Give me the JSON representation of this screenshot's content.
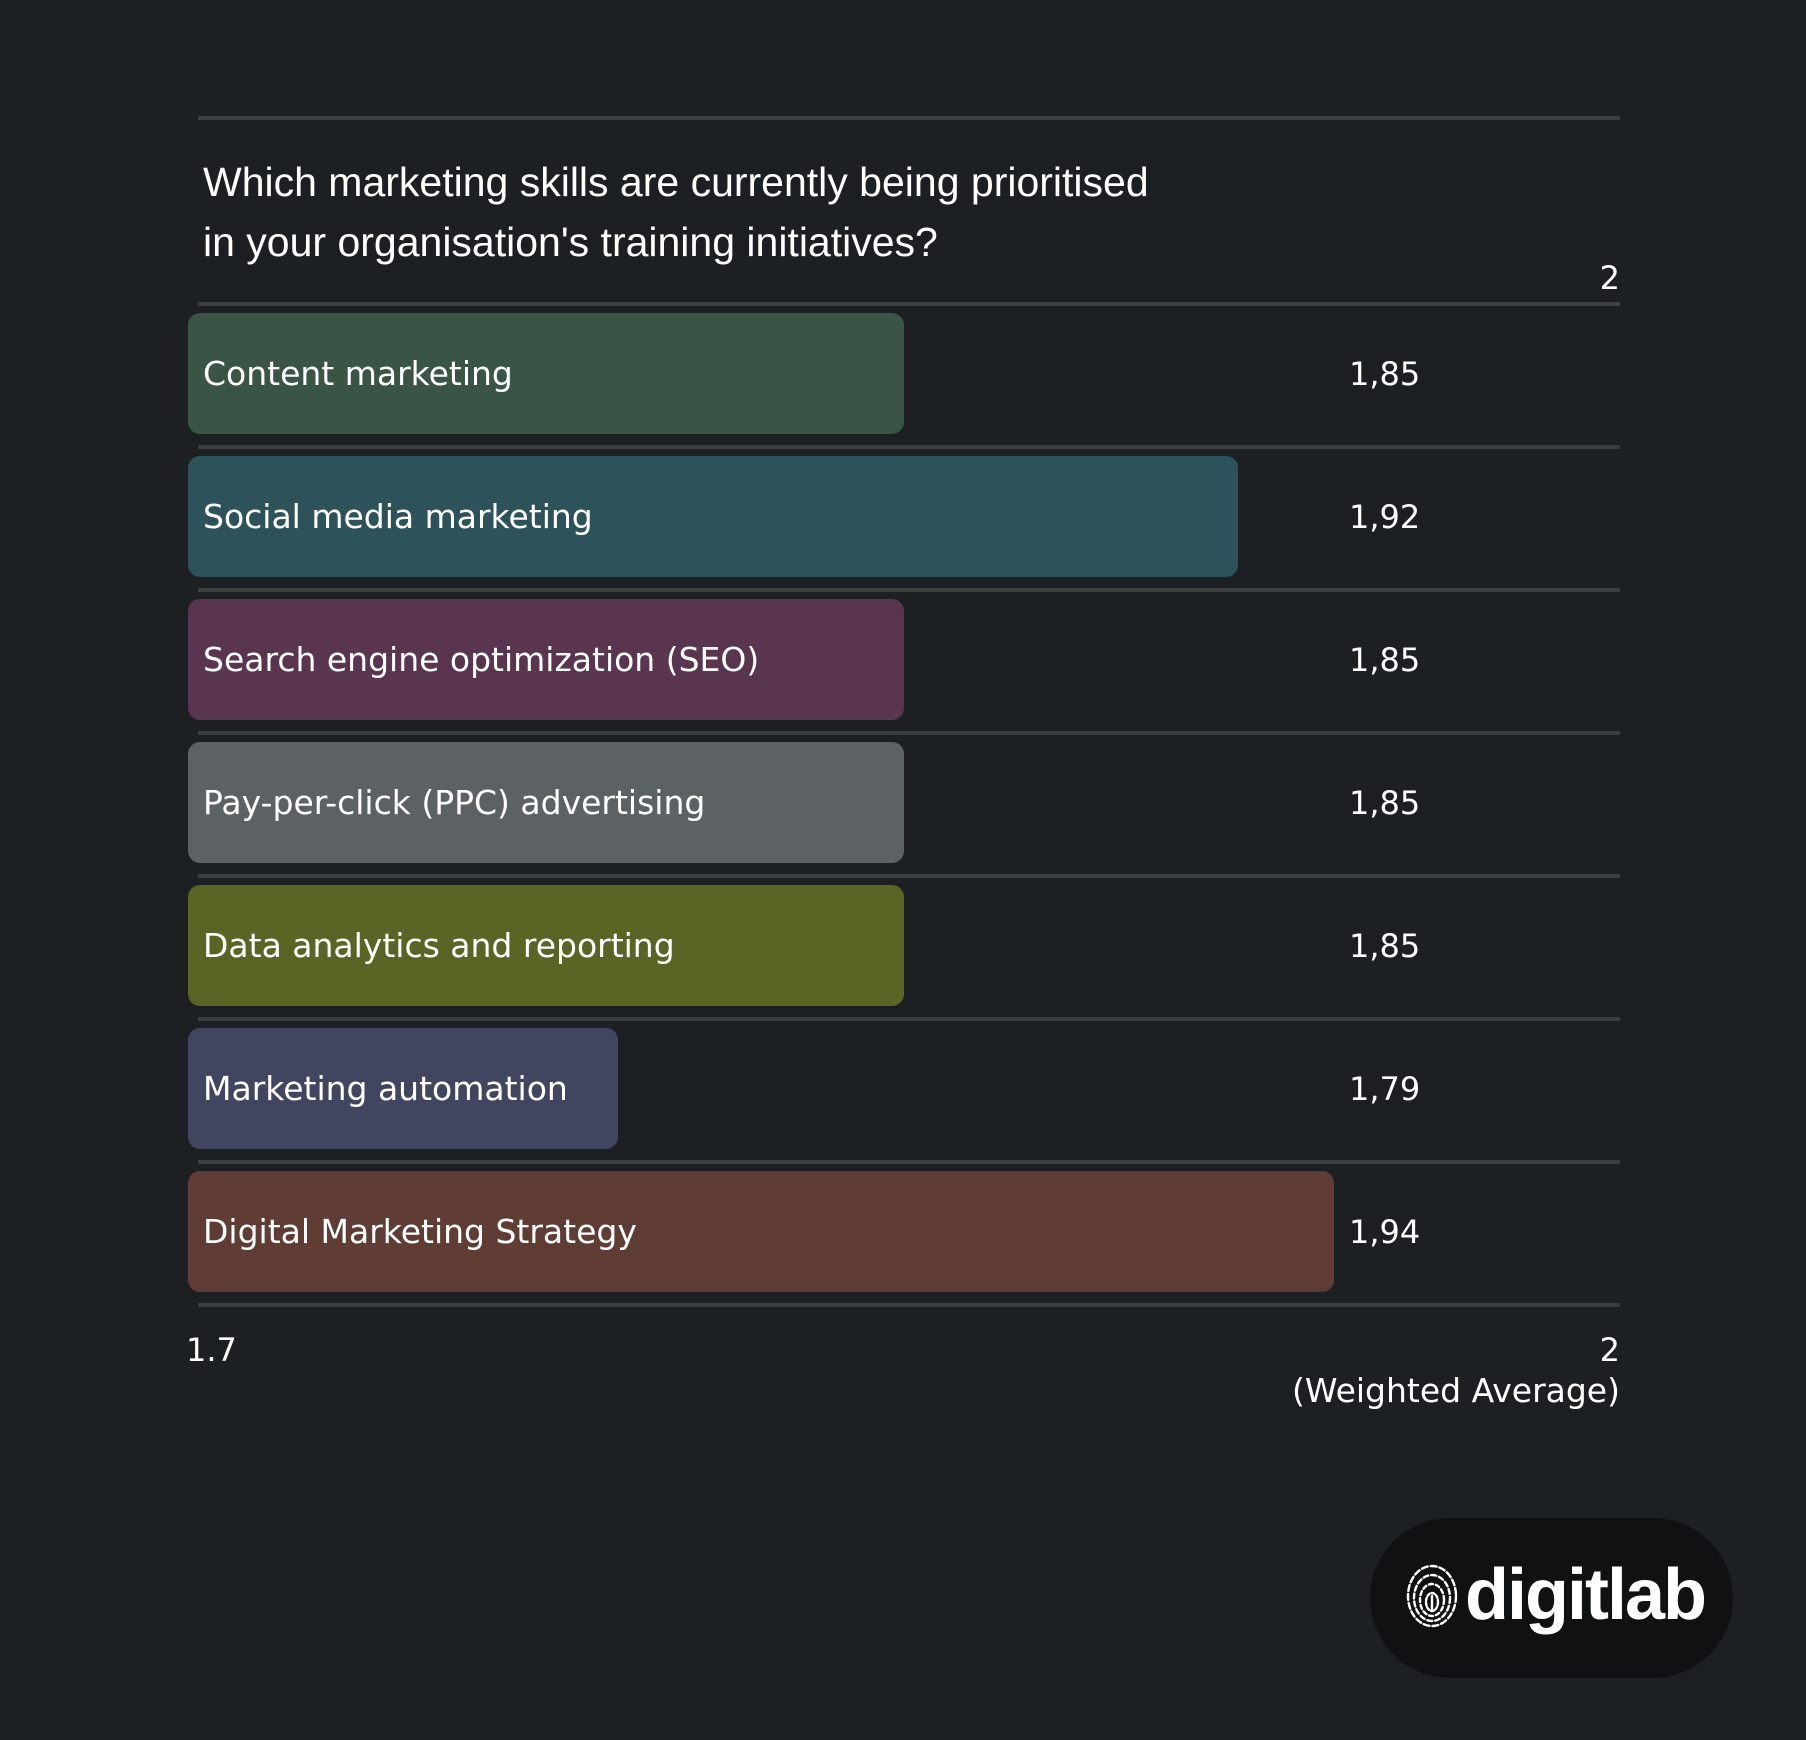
{
  "chart_data": {
    "type": "bar",
    "orientation": "horizontal",
    "title": "Which marketing skills are currently being prioritised in your organisation's training initiatives?",
    "title_lines": [
      "Which marketing skills are currently being prioritised",
      "in your organisation's training initiatives?"
    ],
    "categories": [
      "Content marketing",
      "Social media marketing",
      "Search engine optimization (SEO)",
      "Pay-per-click (PPC) advertising",
      "Data analytics and reporting",
      "Marketing automation",
      "Digital Marketing Strategy"
    ],
    "values": [
      1.85,
      1.92,
      1.85,
      1.85,
      1.85,
      1.79,
      1.94
    ],
    "value_labels": [
      "1,85",
      "1,92",
      "1,85",
      "1,85",
      "1,85",
      "1,79",
      "1,94"
    ],
    "colors": [
      "#3a5545",
      "#2e525a",
      "#5a3550",
      "#5c6263",
      "#5a6425",
      "#424560",
      "#5f3d34"
    ],
    "xlim": [
      1.7,
      2.0
    ],
    "x_tick_top": "2",
    "x_tick_min": "1.7",
    "x_tick_max": "2",
    "xlabel": "(Weighted Average)",
    "grid": true
  },
  "brand": {
    "logo_text": "digitlab",
    "icon": "fingerprint-icon"
  }
}
